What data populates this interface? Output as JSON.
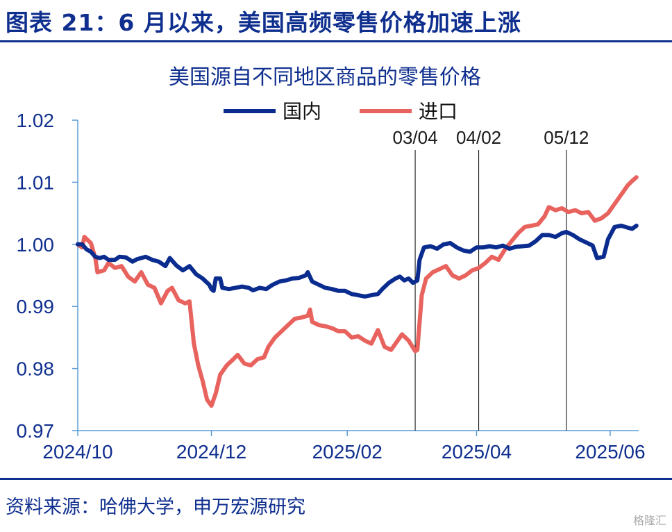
{
  "header": {
    "title": "图表 21：6 月以来，美国高频零售价格加速上涨"
  },
  "footer": {
    "source": "资料来源：哈佛大学，申万宏源研究",
    "watermark": "格隆汇"
  },
  "colors": {
    "brand": "#0f2f8f",
    "domestic": "#0b2c8f",
    "imported": "#e8625e",
    "axis": "#5b9bd5"
  },
  "chart_data": {
    "type": "line",
    "title": "美国源自不同地区商品的零售价格",
    "xlabel": "",
    "ylabel": "",
    "ylim": [
      0.97,
      1.02
    ],
    "yticks": [
      "1.02",
      "1.01",
      "1.00",
      "0.99",
      "0.98",
      "0.97"
    ],
    "xticks": [
      "2024/10",
      "2024/12",
      "2025/02",
      "2025/04",
      "2025/06"
    ],
    "x_range": [
      "2024-10-01",
      "2025-06-14"
    ],
    "legend_position": "top-center",
    "grid": false,
    "vlines": [
      {
        "date": "2025-03-04",
        "label": "03/04"
      },
      {
        "date": "2025-04-02",
        "label": "04/02"
      },
      {
        "date": "2025-05-12",
        "label": "05/12"
      }
    ],
    "series": [
      {
        "name": "国内",
        "points": [
          [
            "2024-10-01",
            1.0
          ],
          [
            "2024-10-03",
            1.0
          ],
          [
            "2024-10-05",
            0.9992
          ],
          [
            "2024-10-07",
            0.9988
          ],
          [
            "2024-10-09",
            0.998
          ],
          [
            "2024-10-11",
            0.9978
          ],
          [
            "2024-10-13",
            0.998
          ],
          [
            "2024-10-15",
            0.9975
          ],
          [
            "2024-10-18",
            0.9975
          ],
          [
            "2024-10-20",
            0.998
          ],
          [
            "2024-10-23",
            0.9979
          ],
          [
            "2024-10-26",
            0.9972
          ],
          [
            "2024-10-28",
            0.9976
          ],
          [
            "2024-11-01",
            0.998
          ],
          [
            "2024-11-04",
            0.9975
          ],
          [
            "2024-11-07",
            0.9972
          ],
          [
            "2024-11-10",
            0.9965
          ],
          [
            "2024-11-12",
            0.9978
          ],
          [
            "2024-11-15",
            0.9966
          ],
          [
            "2024-11-18",
            0.9958
          ],
          [
            "2024-11-21",
            0.9965
          ],
          [
            "2024-11-24",
            0.9952
          ],
          [
            "2024-11-27",
            0.9945
          ],
          [
            "2024-11-30",
            0.9935
          ],
          [
            "2024-12-01",
            0.9928
          ],
          [
            "2024-12-02",
            0.9925
          ],
          [
            "2024-12-03",
            0.9945
          ],
          [
            "2024-12-05",
            0.9945
          ],
          [
            "2024-12-06",
            0.993
          ],
          [
            "2024-12-09",
            0.9928
          ],
          [
            "2024-12-12",
            0.993
          ],
          [
            "2024-12-15",
            0.9932
          ],
          [
            "2024-12-18",
            0.993
          ],
          [
            "2024-12-20",
            0.9926
          ],
          [
            "2024-12-23",
            0.993
          ],
          [
            "2024-12-26",
            0.9928
          ],
          [
            "2024-12-29",
            0.9935
          ],
          [
            "2025-01-01",
            0.994
          ],
          [
            "2025-01-04",
            0.9942
          ],
          [
            "2025-01-07",
            0.9945
          ],
          [
            "2025-01-10",
            0.9946
          ],
          [
            "2025-01-13",
            0.995
          ],
          [
            "2025-01-14",
            0.9955
          ],
          [
            "2025-01-16",
            0.994
          ],
          [
            "2025-01-19",
            0.9935
          ],
          [
            "2025-01-22",
            0.993
          ],
          [
            "2025-01-25",
            0.9928
          ],
          [
            "2025-01-28",
            0.9925
          ],
          [
            "2025-01-31",
            0.9925
          ],
          [
            "2025-02-03",
            0.992
          ],
          [
            "2025-02-06",
            0.9918
          ],
          [
            "2025-02-09",
            0.9916
          ],
          [
            "2025-02-12",
            0.9918
          ],
          [
            "2025-02-15",
            0.992
          ],
          [
            "2025-02-17",
            0.9928
          ],
          [
            "2025-02-20",
            0.9938
          ],
          [
            "2025-02-23",
            0.9945
          ],
          [
            "2025-02-25",
            0.9948
          ],
          [
            "2025-02-27",
            0.9942
          ],
          [
            "2025-03-01",
            0.9945
          ],
          [
            "2025-03-03",
            0.9938
          ],
          [
            "2025-03-05",
            0.9942
          ],
          [
            "2025-03-06",
            0.9975
          ],
          [
            "2025-03-08",
            0.9995
          ],
          [
            "2025-03-11",
            0.9997
          ],
          [
            "2025-03-14",
            0.9993
          ],
          [
            "2025-03-17",
            1.0
          ],
          [
            "2025-03-20",
            1.0002
          ],
          [
            "2025-03-23",
            0.9995
          ],
          [
            "2025-03-26",
            0.999
          ],
          [
            "2025-03-29",
            0.9988
          ],
          [
            "2025-04-01",
            0.9995
          ],
          [
            "2025-04-04",
            0.9995
          ],
          [
            "2025-04-07",
            0.9997
          ],
          [
            "2025-04-10",
            0.9995
          ],
          [
            "2025-04-13",
            0.9998
          ],
          [
            "2025-04-16",
            0.9993
          ],
          [
            "2025-04-19",
            0.9996
          ],
          [
            "2025-04-22",
            0.9997
          ],
          [
            "2025-04-25",
            0.9998
          ],
          [
            "2025-04-28",
            1.0005
          ],
          [
            "2025-05-01",
            1.0015
          ],
          [
            "2025-05-04",
            1.0015
          ],
          [
            "2025-05-07",
            1.0012
          ],
          [
            "2025-05-10",
            1.0018
          ],
          [
            "2025-05-12",
            1.002
          ],
          [
            "2025-05-15",
            1.0015
          ],
          [
            "2025-05-18",
            1.0008
          ],
          [
            "2025-05-21",
            1.0003
          ],
          [
            "2025-05-24",
            0.9998
          ],
          [
            "2025-05-26",
            0.9978
          ],
          [
            "2025-05-29",
            0.998
          ],
          [
            "2025-05-31",
            1.0008
          ],
          [
            "2025-06-03",
            1.0028
          ],
          [
            "2025-06-06",
            1.003
          ],
          [
            "2025-06-09",
            1.0027
          ],
          [
            "2025-06-11",
            1.0025
          ],
          [
            "2025-06-13",
            1.003
          ]
        ]
      },
      {
        "name": "进口",
        "points": [
          [
            "2024-10-01",
            1.0
          ],
          [
            "2024-10-03",
            0.9995
          ],
          [
            "2024-10-04",
            1.0012
          ],
          [
            "2024-10-07",
            1.0002
          ],
          [
            "2024-10-09",
            0.9978
          ],
          [
            "2024-10-10",
            0.9955
          ],
          [
            "2024-10-13",
            0.9958
          ],
          [
            "2024-10-15",
            0.997
          ],
          [
            "2024-10-18",
            0.9962
          ],
          [
            "2024-10-21",
            0.9965
          ],
          [
            "2024-10-24",
            0.9948
          ],
          [
            "2024-10-27",
            0.994
          ],
          [
            "2024-10-30",
            0.9955
          ],
          [
            "2024-11-02",
            0.9935
          ],
          [
            "2024-11-05",
            0.993
          ],
          [
            "2024-11-08",
            0.9905
          ],
          [
            "2024-11-11",
            0.9925
          ],
          [
            "2024-11-13",
            0.993
          ],
          [
            "2024-11-16",
            0.991
          ],
          [
            "2024-11-19",
            0.9905
          ],
          [
            "2024-11-21",
            0.9908
          ],
          [
            "2024-11-23",
            0.984
          ],
          [
            "2024-11-25",
            0.9805
          ],
          [
            "2024-11-27",
            0.978
          ],
          [
            "2024-11-29",
            0.975
          ],
          [
            "2024-12-01",
            0.974
          ],
          [
            "2024-12-03",
            0.976
          ],
          [
            "2024-12-05",
            0.979
          ],
          [
            "2024-12-08",
            0.9805
          ],
          [
            "2024-12-11",
            0.9815
          ],
          [
            "2024-12-13",
            0.9822
          ],
          [
            "2024-12-16",
            0.9808
          ],
          [
            "2024-12-19",
            0.9805
          ],
          [
            "2024-12-22",
            0.9815
          ],
          [
            "2024-12-25",
            0.9818
          ],
          [
            "2024-12-27",
            0.9835
          ],
          [
            "2024-12-30",
            0.985
          ],
          [
            "2025-01-02",
            0.986
          ],
          [
            "2025-01-05",
            0.987
          ],
          [
            "2025-01-08",
            0.988
          ],
          [
            "2025-01-11",
            0.9882
          ],
          [
            "2025-01-14",
            0.9885
          ],
          [
            "2025-01-15",
            0.9895
          ],
          [
            "2025-01-16",
            0.9875
          ],
          [
            "2025-01-19",
            0.987
          ],
          [
            "2025-01-22",
            0.9868
          ],
          [
            "2025-01-25",
            0.9865
          ],
          [
            "2025-01-28",
            0.986
          ],
          [
            "2025-01-31",
            0.986
          ],
          [
            "2025-02-03",
            0.985
          ],
          [
            "2025-02-06",
            0.9852
          ],
          [
            "2025-02-09",
            0.9845
          ],
          [
            "2025-02-12",
            0.984
          ],
          [
            "2025-02-15",
            0.9862
          ],
          [
            "2025-02-18",
            0.9835
          ],
          [
            "2025-02-21",
            0.983
          ],
          [
            "2025-02-24",
            0.9845
          ],
          [
            "2025-02-26",
            0.9855
          ],
          [
            "2025-03-01",
            0.9845
          ],
          [
            "2025-03-04",
            0.9828
          ],
          [
            "2025-03-05",
            0.983
          ],
          [
            "2025-03-07",
            0.9918
          ],
          [
            "2025-03-09",
            0.9945
          ],
          [
            "2025-03-12",
            0.9955
          ],
          [
            "2025-03-15",
            0.996
          ],
          [
            "2025-03-18",
            0.9965
          ],
          [
            "2025-03-21",
            0.995
          ],
          [
            "2025-03-24",
            0.9945
          ],
          [
            "2025-03-27",
            0.995
          ],
          [
            "2025-03-30",
            0.9958
          ],
          [
            "2025-04-02",
            0.9962
          ],
          [
            "2025-04-05",
            0.997
          ],
          [
            "2025-04-08",
            0.998
          ],
          [
            "2025-04-11",
            0.9975
          ],
          [
            "2025-04-14",
            0.9992
          ],
          [
            "2025-04-17",
            1.0005
          ],
          [
            "2025-04-20",
            1.0018
          ],
          [
            "2025-04-23",
            1.0028
          ],
          [
            "2025-04-26",
            1.003
          ],
          [
            "2025-04-29",
            1.0032
          ],
          [
            "2025-05-02",
            1.0045
          ],
          [
            "2025-05-04",
            1.006
          ],
          [
            "2025-05-07",
            1.0055
          ],
          [
            "2025-05-10",
            1.0058
          ],
          [
            "2025-05-13",
            1.0052
          ],
          [
            "2025-05-16",
            1.0055
          ],
          [
            "2025-05-19",
            1.005
          ],
          [
            "2025-05-22",
            1.0052
          ],
          [
            "2025-05-25",
            1.0038
          ],
          [
            "2025-05-28",
            1.0042
          ],
          [
            "2025-05-31",
            1.005
          ],
          [
            "2025-06-03",
            1.0065
          ],
          [
            "2025-06-06",
            1.008
          ],
          [
            "2025-06-09",
            1.0095
          ],
          [
            "2025-06-11",
            1.0102
          ],
          [
            "2025-06-13",
            1.0108
          ]
        ]
      }
    ]
  }
}
